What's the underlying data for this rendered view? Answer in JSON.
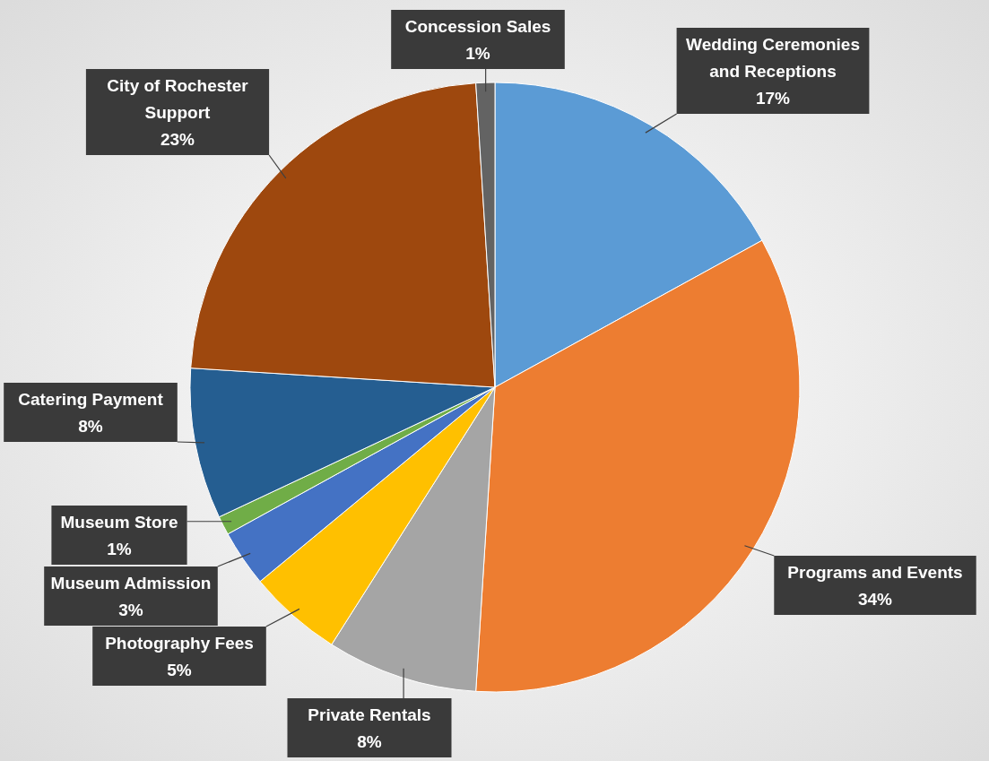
{
  "chart_data": {
    "type": "pie",
    "categories": [
      "Wedding Ceremonies and Receptions",
      "Programs and Events",
      "Private Rentals",
      "Photography Fees",
      "Museum Admission",
      "Museum Store",
      "Catering Payment",
      "City of Rochester Support",
      "Concession Sales"
    ],
    "values": [
      17,
      34,
      8,
      5,
      3,
      1,
      8,
      23,
      1
    ],
    "value_labels": [
      "17%",
      "34%",
      "8%",
      "5%",
      "3%",
      "1%",
      "8%",
      "23%",
      "1%"
    ],
    "colors": [
      "#5b9bd5",
      "#ed7d31",
      "#a5a5a5",
      "#ffc000",
      "#4472c4",
      "#70ad47",
      "#255e91",
      "#9e480e",
      "#636363"
    ]
  }
}
